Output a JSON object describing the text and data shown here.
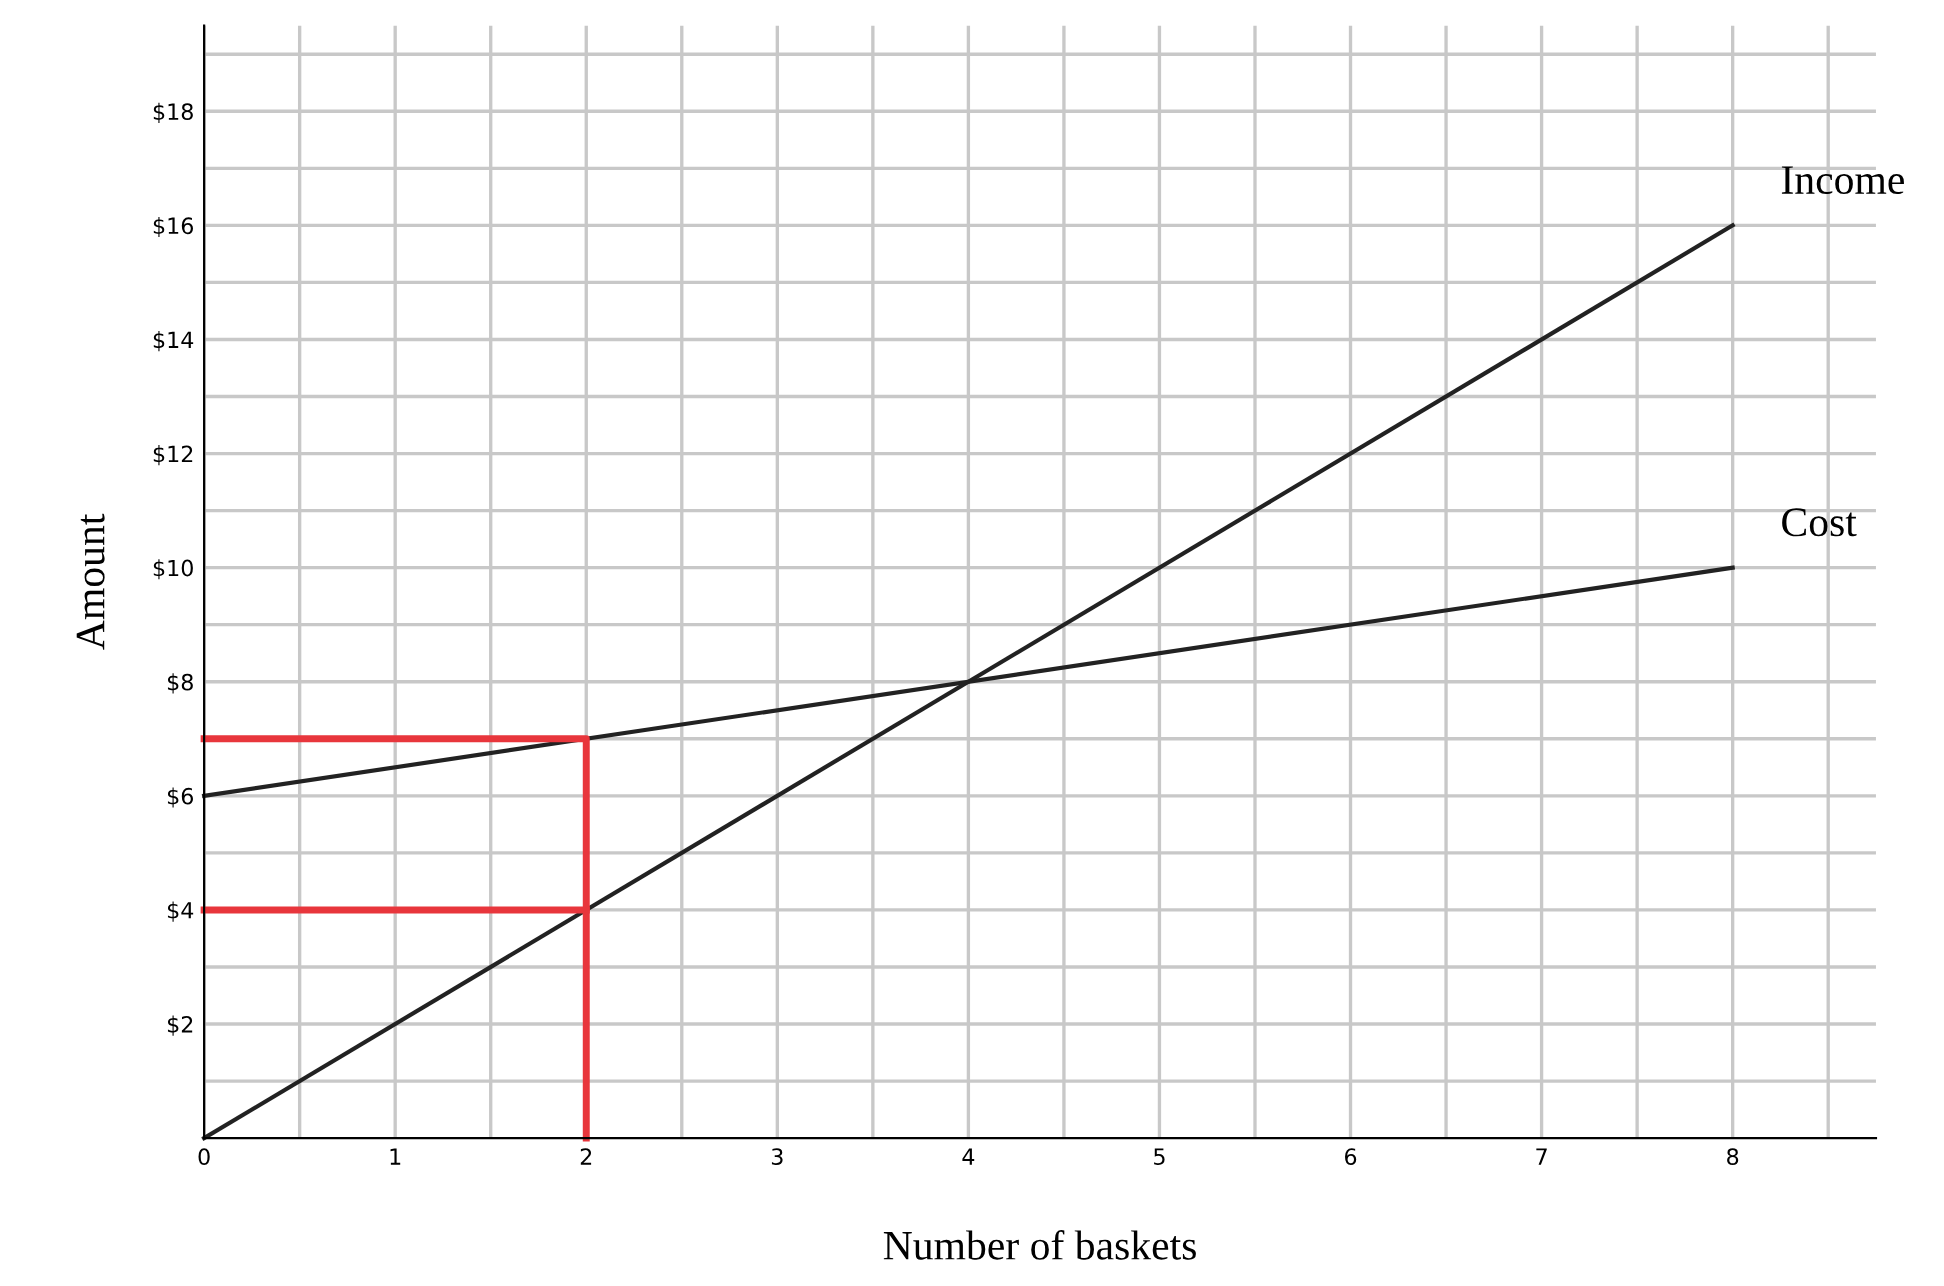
{
  "chart_data": {
    "type": "line",
    "xlabel": "Number of baskets",
    "ylabel": "Amount",
    "xlim": [
      0,
      8.75
    ],
    "ylim": [
      0,
      19.5
    ],
    "xticks": [
      0,
      {
        "value": 0.5,
        "label": null
      },
      1,
      {
        "value": 1.5,
        "label": null
      },
      2,
      {
        "value": 2.5,
        "label": null
      },
      3,
      {
        "value": 3.5,
        "label": null
      },
      4,
      {
        "value": 4.5,
        "label": null
      },
      5,
      {
        "value": 5.5,
        "label": null
      },
      6,
      {
        "value": 6.5,
        "label": null
      },
      7,
      {
        "value": 7.5,
        "label": null
      },
      8,
      {
        "value": 8.5,
        "label": null
      }
    ],
    "yticks": [
      {
        "value": 1,
        "label": null
      },
      {
        "value": 2,
        "label": "$2"
      },
      {
        "value": 3,
        "label": null
      },
      {
        "value": 4,
        "label": "$4"
      },
      {
        "value": 5,
        "label": null
      },
      {
        "value": 6,
        "label": "$6"
      },
      {
        "value": 7,
        "label": null
      },
      {
        "value": 8,
        "label": "$8"
      },
      {
        "value": 9,
        "label": null
      },
      {
        "value": 10,
        "label": "$10"
      },
      {
        "value": 11,
        "label": null
      },
      {
        "value": 12,
        "label": "$12"
      },
      {
        "value": 13,
        "label": null
      },
      {
        "value": 14,
        "label": "$14"
      },
      {
        "value": 15,
        "label": null
      },
      {
        "value": 16,
        "label": "$16"
      },
      {
        "value": 17,
        "label": null
      },
      {
        "value": 18,
        "label": "$18"
      },
      {
        "value": 19,
        "label": null
      }
    ],
    "grid": true,
    "legend": false,
    "marker": "none",
    "line_style": "solid",
    "series": [
      {
        "name": "Income",
        "color": "#222222",
        "x": [
          0,
          8
        ],
        "values": [
          0,
          16
        ]
      },
      {
        "name": "Cost",
        "color": "#222222",
        "x": [
          0,
          8
        ],
        "values": [
          6,
          10
        ]
      },
      {
        "color": "#e8363c",
        "x": [
          0,
          2,
          2
        ],
        "values": [
          7,
          7,
          0
        ]
      },
      {
        "color": "#e8363c",
        "x": [
          0,
          2
        ],
        "values": [
          4,
          4
        ]
      }
    ]
  }
}
